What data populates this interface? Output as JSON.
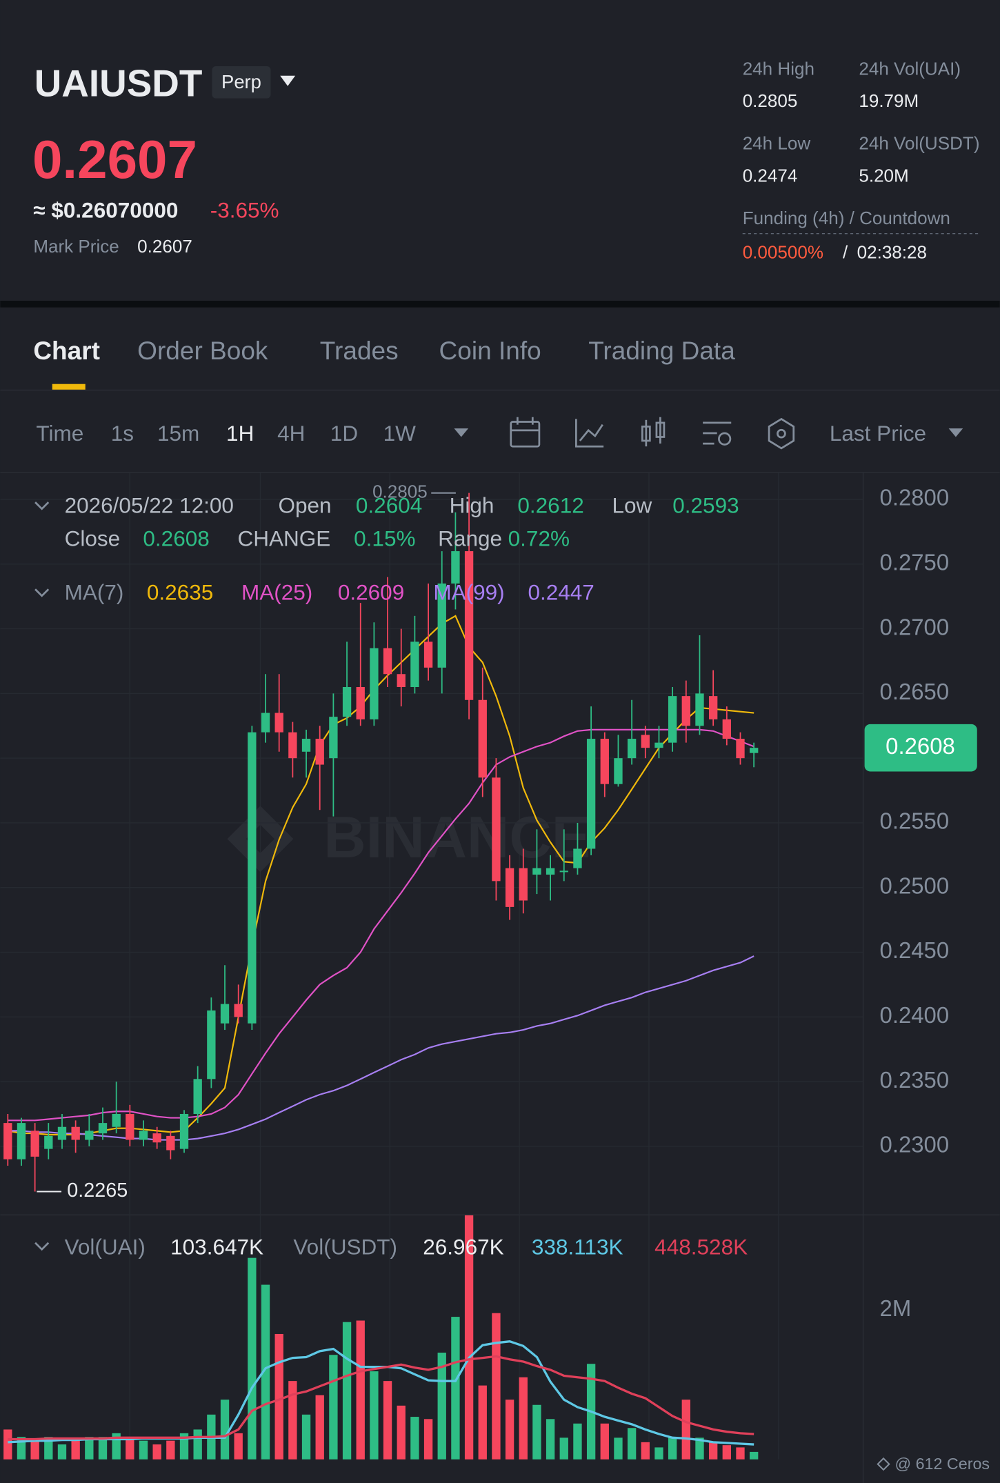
{
  "header": {
    "symbol": "UAIUSDT",
    "contract": "Perp",
    "price": "0.2607",
    "fiat_price": "≈ $0.26070000",
    "change": "-3.65%",
    "mark_price_label": "Mark Price",
    "mark_price": "0.2607",
    "stats": [
      {
        "label": "24h High",
        "value": "0.2805"
      },
      {
        "label": "24h Vol(UAI)",
        "value": "19.79M"
      },
      {
        "label": "24h Low",
        "value": "0.2474"
      },
      {
        "label": "24h Vol(USDT)",
        "value": "5.20M"
      }
    ],
    "funding_label": "Funding (4h) / Countdown",
    "funding_rate": "0.00500%",
    "separator": "/",
    "countdown": "02:38:28"
  },
  "tabs": [
    "Chart",
    "Order Book",
    "Trades",
    "Coin Info",
    "Trading Data"
  ],
  "toolbar": {
    "intervals": [
      "Time",
      "1s",
      "15m",
      "1H",
      "4H",
      "1D",
      "1W"
    ],
    "price_type": "Last Price"
  },
  "watermark": "BINANCE",
  "footer": "@ 612 Ceros",
  "chart_data": [
    {
      "type": "candlestick",
      "ohlc_legend": {
        "date": "2026/05/22 12:00",
        "open": "Open",
        "high": "High",
        "low": "Low",
        "close": "Close",
        "change": "CHANGE",
        "change_value": "0.15%",
        "range": "Range",
        "range_value": "0.72%"
      },
      "up_color": "#2ebd85",
      "down_color": "#f6465d",
      "open": [
        0.2318,
        0.229,
        0.2312,
        0.2298,
        0.2305,
        0.2315,
        0.2305,
        0.231,
        0.2315,
        0.2325,
        0.2305,
        0.231,
        0.2308,
        0.2298,
        0.2325,
        0.2352,
        0.2395,
        0.241,
        0.2395,
        0.262,
        0.2635,
        0.262,
        0.2605,
        0.2615,
        0.26,
        0.2632,
        0.2655,
        0.263,
        0.2685,
        0.2665,
        0.2655,
        0.269,
        0.267,
        0.2735,
        0.276,
        0.2645,
        0.2585,
        0.2515,
        0.2515,
        0.251,
        0.251,
        0.2512,
        0.2515,
        0.253,
        0.2615,
        0.258,
        0.26,
        0.2618,
        0.2608,
        0.2612,
        0.2648,
        0.2625,
        0.2648,
        0.263,
        0.2615,
        0.2604
      ],
      "high": [
        0.2325,
        0.2322,
        0.2318,
        0.2318,
        0.2325,
        0.232,
        0.2325,
        0.233,
        0.235,
        0.2332,
        0.232,
        0.2315,
        0.2312,
        0.2328,
        0.2362,
        0.2415,
        0.244,
        0.2425,
        0.2625,
        0.2665,
        0.2665,
        0.2628,
        0.2622,
        0.2625,
        0.265,
        0.269,
        0.272,
        0.2705,
        0.274,
        0.27,
        0.271,
        0.2735,
        0.276,
        0.279,
        0.2805,
        0.267,
        0.26,
        0.2525,
        0.253,
        0.2545,
        0.2525,
        0.2545,
        0.255,
        0.264,
        0.262,
        0.2618,
        0.2645,
        0.2625,
        0.2625,
        0.2655,
        0.266,
        0.2695,
        0.2668,
        0.264,
        0.262,
        0.2612
      ],
      "low": [
        0.2285,
        0.2285,
        0.2265,
        0.229,
        0.2298,
        0.2295,
        0.23,
        0.2305,
        0.231,
        0.23,
        0.23,
        0.2298,
        0.229,
        0.2295,
        0.2318,
        0.2345,
        0.239,
        0.2395,
        0.239,
        0.2612,
        0.2605,
        0.2585,
        0.2585,
        0.256,
        0.2555,
        0.2625,
        0.2625,
        0.2625,
        0.2655,
        0.264,
        0.265,
        0.266,
        0.265,
        0.2715,
        0.263,
        0.257,
        0.249,
        0.2475,
        0.248,
        0.2495,
        0.249,
        0.2505,
        0.251,
        0.2525,
        0.257,
        0.2578,
        0.2595,
        0.26,
        0.26,
        0.2605,
        0.2612,
        0.2618,
        0.2625,
        0.261,
        0.2595,
        0.2593
      ],
      "close": [
        0.229,
        0.2318,
        0.2292,
        0.2308,
        0.2315,
        0.2305,
        0.2312,
        0.2318,
        0.2325,
        0.2305,
        0.2312,
        0.2303,
        0.2297,
        0.2325,
        0.2352,
        0.2405,
        0.241,
        0.24,
        0.262,
        0.2635,
        0.262,
        0.26,
        0.2615,
        0.2595,
        0.2632,
        0.2655,
        0.263,
        0.2685,
        0.2665,
        0.2655,
        0.269,
        0.267,
        0.2735,
        0.276,
        0.2645,
        0.2585,
        0.2505,
        0.2485,
        0.249,
        0.2515,
        0.2515,
        0.2513,
        0.253,
        0.2615,
        0.258,
        0.26,
        0.2615,
        0.2608,
        0.2612,
        0.2648,
        0.2625,
        0.265,
        0.263,
        0.2615,
        0.26,
        0.2608
      ],
      "series": [
        {
          "name": "MA(7)",
          "color": "#f0b90b",
          "values": [
            0.2312,
            0.231,
            0.231,
            0.2309,
            0.2309,
            0.2309,
            0.231,
            0.2312,
            0.2314,
            0.2314,
            0.2313,
            0.2312,
            0.2311,
            0.2312,
            0.2322,
            0.2333,
            0.2345,
            0.24,
            0.2455,
            0.2505,
            0.2537,
            0.2562,
            0.258,
            0.261,
            0.2626,
            0.2631,
            0.264,
            0.2653,
            0.2664,
            0.2674,
            0.2684,
            0.2694,
            0.2704,
            0.271,
            0.2686,
            0.2674,
            0.2648,
            0.2617,
            0.2577,
            0.2552,
            0.2535,
            0.252,
            0.2519,
            0.2535,
            0.2546,
            0.256,
            0.2576,
            0.2592,
            0.2608,
            0.2619,
            0.263,
            0.2639,
            0.2638,
            0.2637,
            0.2636,
            0.2635
          ]
        },
        {
          "name": "MA(25)",
          "color": "#e052c6",
          "values": [
            0.232,
            0.232,
            0.232,
            0.2321,
            0.2322,
            0.2323,
            0.2324,
            0.2326,
            0.2327,
            0.2327,
            0.2325,
            0.2323,
            0.2322,
            0.2322,
            0.2323,
            0.2325,
            0.233,
            0.234,
            0.2356,
            0.2372,
            0.2387,
            0.24,
            0.2413,
            0.2425,
            0.2432,
            0.2438,
            0.245,
            0.2468,
            0.2482,
            0.2496,
            0.2511,
            0.2527,
            0.254,
            0.2553,
            0.2565,
            0.2581,
            0.2595,
            0.2601,
            0.2605,
            0.2609,
            0.2612,
            0.2617,
            0.2621,
            0.2622,
            0.2622,
            0.2622,
            0.2622,
            0.2622,
            0.2622,
            0.2622,
            0.2622,
            0.2622,
            0.2621,
            0.2617,
            0.2613,
            0.2609
          ]
        },
        {
          "name": "MA(99)",
          "color": "#a77ff2",
          "values": [
            0.2312,
            0.2312,
            0.2311,
            0.2311,
            0.231,
            0.231,
            0.2309,
            0.2308,
            0.2307,
            0.2306,
            0.2306,
            0.2305,
            0.2305,
            0.2305,
            0.2306,
            0.2308,
            0.231,
            0.2313,
            0.2317,
            0.2321,
            0.2326,
            0.2331,
            0.2336,
            0.234,
            0.2343,
            0.2347,
            0.2352,
            0.2357,
            0.2362,
            0.2367,
            0.2371,
            0.2376,
            0.2379,
            0.2381,
            0.2383,
            0.2385,
            0.2387,
            0.2388,
            0.239,
            0.2393,
            0.2395,
            0.2398,
            0.2401,
            0.2405,
            0.2409,
            0.2412,
            0.2415,
            0.2419,
            0.2422,
            0.2425,
            0.2428,
            0.2432,
            0.2436,
            0.2439,
            0.2442,
            0.2447
          ]
        }
      ],
      "ylim": [
        0.22481,
        0.28205
      ],
      "yticks": [
        {
          "value": 0.28,
          "label": "0.2800"
        },
        {
          "value": 0.275,
          "label": "0.2750"
        },
        {
          "value": 0.27,
          "label": "0.2700"
        },
        {
          "value": 0.265,
          "label": "0.2650"
        },
        {
          "value": 0.26,
          "label": "0.2600"
        },
        {
          "value": 0.255,
          "label": "0.2550"
        },
        {
          "value": 0.25,
          "label": "0.2500"
        },
        {
          "value": 0.245,
          "label": "0.2450"
        },
        {
          "value": 0.24,
          "label": "0.2400"
        },
        {
          "value": 0.235,
          "label": "0.2350"
        },
        {
          "value": 0.23,
          "label": "0.2300"
        }
      ],
      "grid": true
    },
    {
      "type": "bar",
      "legend": {
        "volume_label": "Vol(UAI)",
        "volume": "103.647K",
        "quote_label": "Vol(USDT)",
        "quote": "26.967K",
        "ma_short": "338.113K",
        "ma_long": "448.528K"
      },
      "values": [
        0.4,
        0.3,
        0.25,
        0.3,
        0.2,
        0.25,
        0.3,
        0.3,
        0.35,
        0.3,
        0.25,
        0.2,
        0.25,
        0.35,
        0.4,
        0.6,
        0.8,
        0.35,
        2.7,
        2.34,
        1.68,
        1.05,
        0.6,
        0.86,
        1.4,
        1.84,
        1.86,
        1.18,
        1.05,
        0.72,
        0.57,
        0.54,
        1.43,
        1.91,
        3.27,
        0.99,
        1.96,
        0.8,
        1.1,
        0.73,
        0.54,
        0.29,
        0.48,
        1.28,
        0.48,
        0.29,
        0.42,
        0.23,
        0.16,
        0.29,
        0.8,
        0.29,
        0.23,
        0.19,
        0.16,
        0.1
      ],
      "series": [
        {
          "color": "#5ec8e5",
          "values": [
            0.23,
            0.24,
            0.25,
            0.25,
            0.26,
            0.26,
            0.27,
            0.27,
            0.27,
            0.27,
            0.28,
            0.28,
            0.28,
            0.28,
            0.29,
            0.29,
            0.29,
            0.6,
            0.96,
            1.22,
            1.3,
            1.36,
            1.37,
            1.45,
            1.48,
            1.35,
            1.24,
            1.24,
            1.24,
            1.22,
            1.14,
            1.06,
            1.05,
            1.05,
            1.36,
            1.53,
            1.56,
            1.58,
            1.52,
            1.37,
            1.04,
            0.8,
            0.7,
            0.64,
            0.57,
            0.52,
            0.47,
            0.4,
            0.34,
            0.29,
            0.28,
            0.26,
            0.23,
            0.22,
            0.21,
            0.2
          ]
        },
        {
          "color": "#e0405a",
          "values": [
            0.27,
            0.27,
            0.27,
            0.28,
            0.28,
            0.28,
            0.28,
            0.28,
            0.29,
            0.29,
            0.29,
            0.29,
            0.29,
            0.29,
            0.3,
            0.3,
            0.31,
            0.4,
            0.65,
            0.74,
            0.8,
            0.87,
            0.91,
            0.98,
            1.05,
            1.12,
            1.18,
            1.21,
            1.24,
            1.27,
            1.23,
            1.2,
            1.24,
            1.3,
            1.34,
            1.36,
            1.38,
            1.34,
            1.31,
            1.25,
            1.2,
            1.12,
            1.1,
            1.08,
            1.05,
            0.96,
            0.88,
            0.82,
            0.7,
            0.58,
            0.5,
            0.45,
            0.4,
            0.37,
            0.35,
            0.34
          ]
        }
      ],
      "ylim": [
        0,
        3.27
      ],
      "yticks": [
        {
          "value": 2,
          "label": "2M"
        }
      ]
    }
  ]
}
